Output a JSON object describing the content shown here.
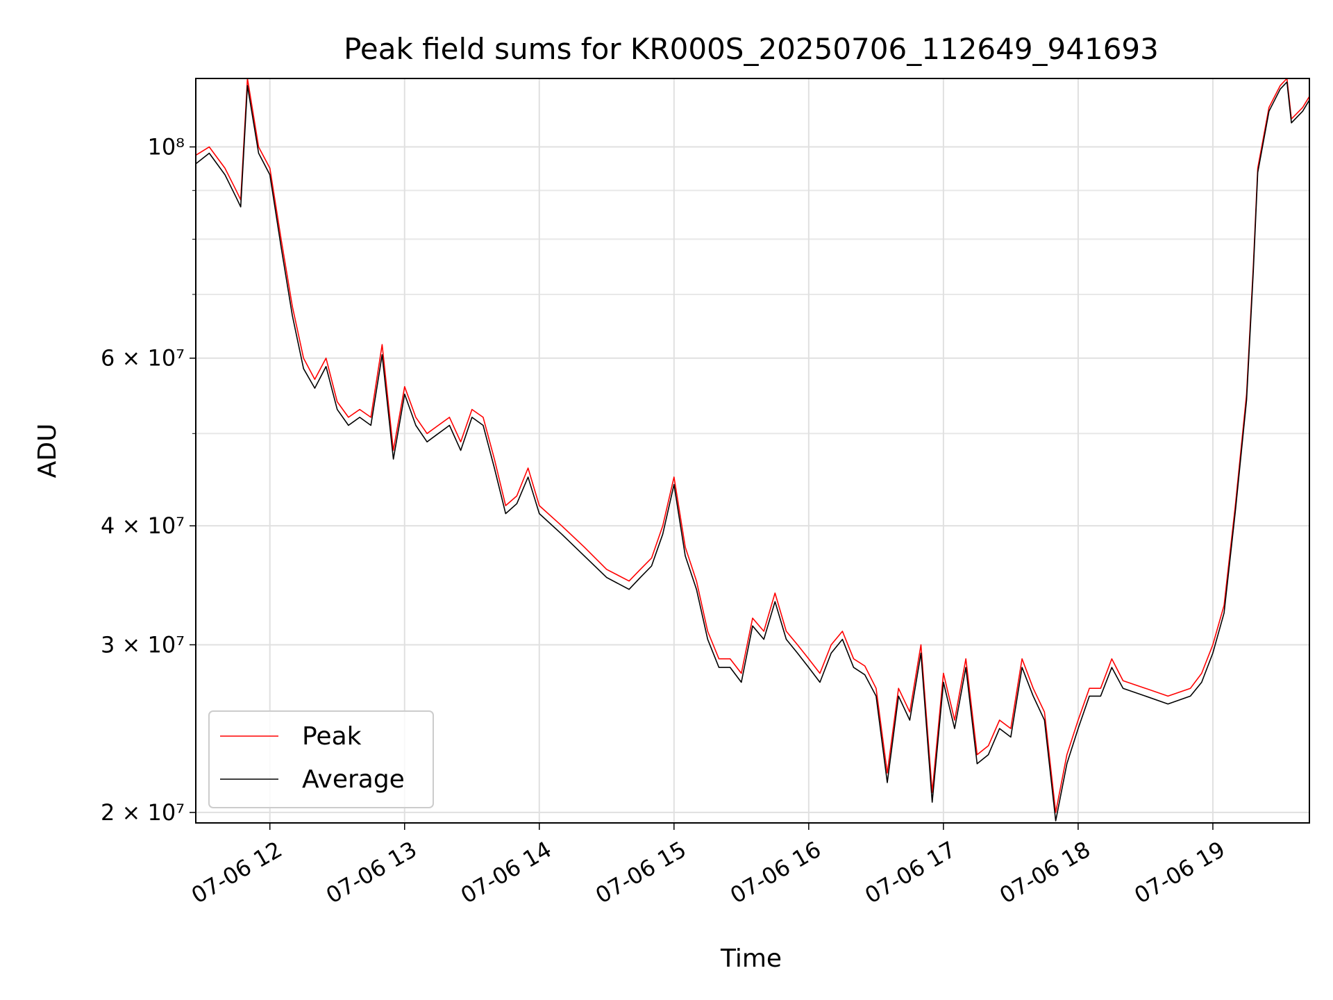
{
  "chart_data": {
    "type": "line",
    "title": "Peak field sums for KR000S_20250706_112649_941693",
    "xlabel": "Time",
    "ylabel": "ADU",
    "yscale": "log",
    "ylim": [
      19500000,
      118000000
    ],
    "xlim": [
      "2025-07-06 11:27",
      "2025-07-06 19:43"
    ],
    "grid": true,
    "legend_position": "lower-left",
    "x_ticks": [
      "07-06 12",
      "07-06 13",
      "07-06 14",
      "07-06 15",
      "07-06 16",
      "07-06 17",
      "07-06 18",
      "07-06 19"
    ],
    "y_ticks": [
      {
        "value": 20000000,
        "label": "2 × 10⁷"
      },
      {
        "value": 30000000,
        "label": "3 × 10⁷"
      },
      {
        "value": 40000000,
        "label": "4 × 10⁷"
      },
      {
        "value": 60000000,
        "label": "6 × 10⁷"
      },
      {
        "value": 100000000,
        "label": "10⁸"
      }
    ],
    "y_minor_ticks": [
      50000000,
      70000000,
      80000000,
      90000000
    ],
    "series": [
      {
        "name": "Peak",
        "color": "#ff0000",
        "x": [
          "2025-07-06 11:27",
          "2025-07-06 11:33",
          "2025-07-06 11:40",
          "2025-07-06 11:45",
          "2025-07-06 11:47",
          "2025-07-06 11:50",
          "2025-07-06 11:55",
          "2025-07-06 12:00",
          "2025-07-06 12:05",
          "2025-07-06 12:10",
          "2025-07-06 12:15",
          "2025-07-06 12:20",
          "2025-07-06 12:25",
          "2025-07-06 12:30",
          "2025-07-06 12:35",
          "2025-07-06 12:40",
          "2025-07-06 12:45",
          "2025-07-06 12:50",
          "2025-07-06 12:55",
          "2025-07-06 13:00",
          "2025-07-06 13:05",
          "2025-07-06 13:10",
          "2025-07-06 13:15",
          "2025-07-06 13:20",
          "2025-07-06 13:25",
          "2025-07-06 13:30",
          "2025-07-06 13:35",
          "2025-07-06 13:40",
          "2025-07-06 13:45",
          "2025-07-06 13:50",
          "2025-07-06 13:55",
          "2025-07-06 14:00",
          "2025-07-06 14:10",
          "2025-07-06 14:20",
          "2025-07-06 14:30",
          "2025-07-06 14:40",
          "2025-07-06 14:45",
          "2025-07-06 14:50",
          "2025-07-06 14:55",
          "2025-07-06 15:00",
          "2025-07-06 15:05",
          "2025-07-06 15:10",
          "2025-07-06 15:15",
          "2025-07-06 15:20",
          "2025-07-06 15:25",
          "2025-07-06 15:30",
          "2025-07-06 15:35",
          "2025-07-06 15:40",
          "2025-07-06 15:45",
          "2025-07-06 15:50",
          "2025-07-06 15:55",
          "2025-07-06 16:00",
          "2025-07-06 16:05",
          "2025-07-06 16:10",
          "2025-07-06 16:15",
          "2025-07-06 16:20",
          "2025-07-06 16:25",
          "2025-07-06 16:30",
          "2025-07-06 16:35",
          "2025-07-06 16:40",
          "2025-07-06 16:45",
          "2025-07-06 16:50",
          "2025-07-06 16:55",
          "2025-07-06 17:00",
          "2025-07-06 17:05",
          "2025-07-06 17:10",
          "2025-07-06 17:15",
          "2025-07-06 17:20",
          "2025-07-06 17:25",
          "2025-07-06 17:30",
          "2025-07-06 17:35",
          "2025-07-06 17:40",
          "2025-07-06 17:45",
          "2025-07-06 17:50",
          "2025-07-06 17:55",
          "2025-07-06 18:00",
          "2025-07-06 18:05",
          "2025-07-06 18:10",
          "2025-07-06 18:15",
          "2025-07-06 18:20",
          "2025-07-06 18:30",
          "2025-07-06 18:40",
          "2025-07-06 18:50",
          "2025-07-06 18:55",
          "2025-07-06 19:00",
          "2025-07-06 19:05",
          "2025-07-06 19:10",
          "2025-07-06 19:15",
          "2025-07-06 19:18",
          "2025-07-06 19:20",
          "2025-07-06 19:25",
          "2025-07-06 19:30",
          "2025-07-06 19:33",
          "2025-07-06 19:35",
          "2025-07-06 19:40",
          "2025-07-06 19:43"
        ],
        "y": [
          98000000,
          100000000,
          95000000,
          90000000,
          88000000,
          118000000,
          100000000,
          95000000,
          80000000,
          68000000,
          60000000,
          57000000,
          60000000,
          54000000,
          52000000,
          53000000,
          52000000,
          62000000,
          48000000,
          56000000,
          52000000,
          50000000,
          51000000,
          52000000,
          49000000,
          53000000,
          52000000,
          47000000,
          42000000,
          43000000,
          46000000,
          42000000,
          40000000,
          38000000,
          36000000,
          35000000,
          36000000,
          37000000,
          40000000,
          45000000,
          38000000,
          35000000,
          31000000,
          29000000,
          29000000,
          28000000,
          32000000,
          31000000,
          34000000,
          31000000,
          30000000,
          29000000,
          28000000,
          30000000,
          31000000,
          29000000,
          28500000,
          27000000,
          22000000,
          27000000,
          25500000,
          30000000,
          21000000,
          28000000,
          25000000,
          29000000,
          23000000,
          23500000,
          25000000,
          24500000,
          29000000,
          27000000,
          25500000,
          20000000,
          23000000,
          25000000,
          27000000,
          27000000,
          29000000,
          27500000,
          27000000,
          26500000,
          27000000,
          28000000,
          30000000,
          33000000,
          42000000,
          55000000,
          75000000,
          95000000,
          110000000,
          116000000,
          118000000,
          107000000,
          110000000,
          113000000
        ]
      },
      {
        "name": "Average",
        "color": "#000000",
        "x": [
          "2025-07-06 11:27",
          "2025-07-06 11:33",
          "2025-07-06 11:40",
          "2025-07-06 11:45",
          "2025-07-06 11:47",
          "2025-07-06 11:50",
          "2025-07-06 11:55",
          "2025-07-06 12:00",
          "2025-07-06 12:05",
          "2025-07-06 12:10",
          "2025-07-06 12:15",
          "2025-07-06 12:20",
          "2025-07-06 12:25",
          "2025-07-06 12:30",
          "2025-07-06 12:35",
          "2025-07-06 12:40",
          "2025-07-06 12:45",
          "2025-07-06 12:50",
          "2025-07-06 12:55",
          "2025-07-06 13:00",
          "2025-07-06 13:05",
          "2025-07-06 13:10",
          "2025-07-06 13:15",
          "2025-07-06 13:20",
          "2025-07-06 13:25",
          "2025-07-06 13:30",
          "2025-07-06 13:35",
          "2025-07-06 13:40",
          "2025-07-06 13:45",
          "2025-07-06 13:50",
          "2025-07-06 13:55",
          "2025-07-06 14:00",
          "2025-07-06 14:10",
          "2025-07-06 14:20",
          "2025-07-06 14:30",
          "2025-07-06 14:40",
          "2025-07-06 14:45",
          "2025-07-06 14:50",
          "2025-07-06 14:55",
          "2025-07-06 15:00",
          "2025-07-06 15:05",
          "2025-07-06 15:10",
          "2025-07-06 15:15",
          "2025-07-06 15:20",
          "2025-07-06 15:25",
          "2025-07-06 15:30",
          "2025-07-06 15:35",
          "2025-07-06 15:40",
          "2025-07-06 15:45",
          "2025-07-06 15:50",
          "2025-07-06 15:55",
          "2025-07-06 16:00",
          "2025-07-06 16:05",
          "2025-07-06 16:10",
          "2025-07-06 16:15",
          "2025-07-06 16:20",
          "2025-07-06 16:25",
          "2025-07-06 16:30",
          "2025-07-06 16:35",
          "2025-07-06 16:40",
          "2025-07-06 16:45",
          "2025-07-06 16:50",
          "2025-07-06 16:55",
          "2025-07-06 17:00",
          "2025-07-06 17:05",
          "2025-07-06 17:10",
          "2025-07-06 17:15",
          "2025-07-06 17:20",
          "2025-07-06 17:25",
          "2025-07-06 17:30",
          "2025-07-06 17:35",
          "2025-07-06 17:40",
          "2025-07-06 17:45",
          "2025-07-06 17:50",
          "2025-07-06 17:55",
          "2025-07-06 18:00",
          "2025-07-06 18:05",
          "2025-07-06 18:10",
          "2025-07-06 18:15",
          "2025-07-06 18:20",
          "2025-07-06 18:30",
          "2025-07-06 18:40",
          "2025-07-06 18:50",
          "2025-07-06 18:55",
          "2025-07-06 19:00",
          "2025-07-06 19:05",
          "2025-07-06 19:10",
          "2025-07-06 19:15",
          "2025-07-06 19:18",
          "2025-07-06 19:20",
          "2025-07-06 19:25",
          "2025-07-06 19:30",
          "2025-07-06 19:33",
          "2025-07-06 19:35",
          "2025-07-06 19:40",
          "2025-07-06 19:43"
        ],
        "y": [
          96000000,
          98500000,
          93500000,
          88500000,
          86500000,
          116000000,
          98500000,
          93500000,
          78500000,
          66500000,
          58500000,
          55800000,
          58800000,
          53000000,
          51000000,
          52000000,
          51000000,
          60500000,
          47000000,
          55000000,
          51000000,
          49000000,
          50000000,
          51000000,
          48000000,
          52000000,
          51000000,
          46000000,
          41200000,
          42200000,
          45000000,
          41200000,
          39200000,
          37200000,
          35300000,
          34300000,
          35300000,
          36300000,
          39200000,
          44200000,
          37200000,
          34300000,
          30400000,
          28400000,
          28400000,
          27400000,
          31400000,
          30400000,
          33300000,
          30400000,
          29400000,
          28400000,
          27400000,
          29400000,
          30400000,
          28400000,
          27900000,
          26500000,
          21500000,
          26500000,
          25000000,
          29400000,
          20500000,
          27400000,
          24500000,
          28400000,
          22500000,
          23000000,
          24500000,
          24000000,
          28400000,
          26500000,
          25000000,
          19600000,
          22500000,
          24500000,
          26500000,
          26500000,
          28400000,
          27000000,
          26500000,
          26000000,
          26500000,
          27400000,
          29400000,
          32400000,
          41400000,
          54200000,
          74000000,
          94000000,
          109000000,
          115000000,
          117000000,
          106000000,
          109000000,
          112000000
        ]
      }
    ]
  }
}
